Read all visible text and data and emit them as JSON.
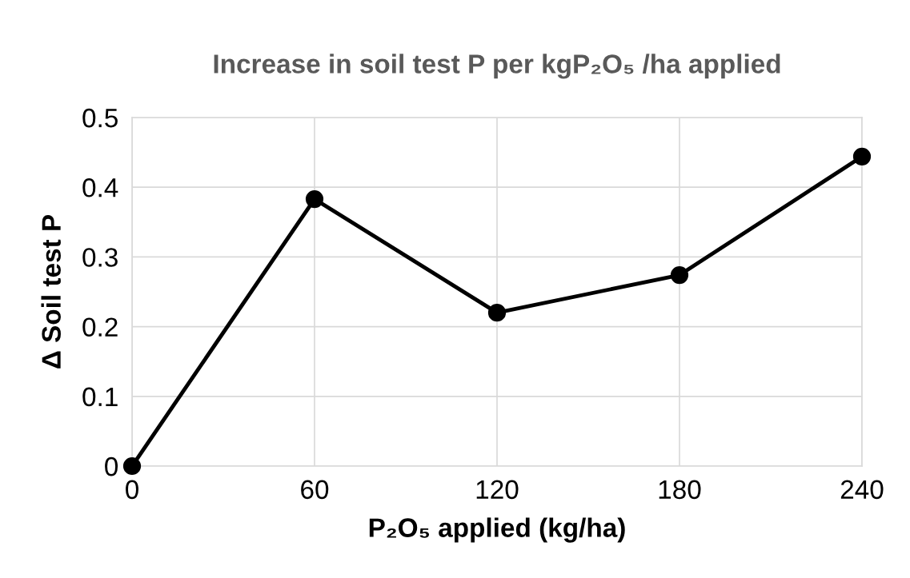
{
  "chart_data": {
    "type": "line",
    "title": "Increase in soil test P per kgP₂O₅ /ha applied",
    "xlabel": "P₂O₅ applied (kg/ha)",
    "ylabel": "Δ Soil test P",
    "x": [
      0,
      60,
      120,
      180,
      240
    ],
    "series": [
      {
        "color": "#000000",
        "values": [
          0,
          0.383,
          0.22,
          0.274,
          0.444
        ]
      }
    ],
    "xlim": [
      0,
      240
    ],
    "xticks": [
      0,
      60,
      120,
      180,
      240
    ],
    "ylim": [
      0,
      0.5
    ],
    "yticks": [
      0,
      0.1,
      0.2,
      0.3,
      0.4,
      0.5
    ],
    "grid": true,
    "marker": "circle",
    "line_style": "solid"
  }
}
